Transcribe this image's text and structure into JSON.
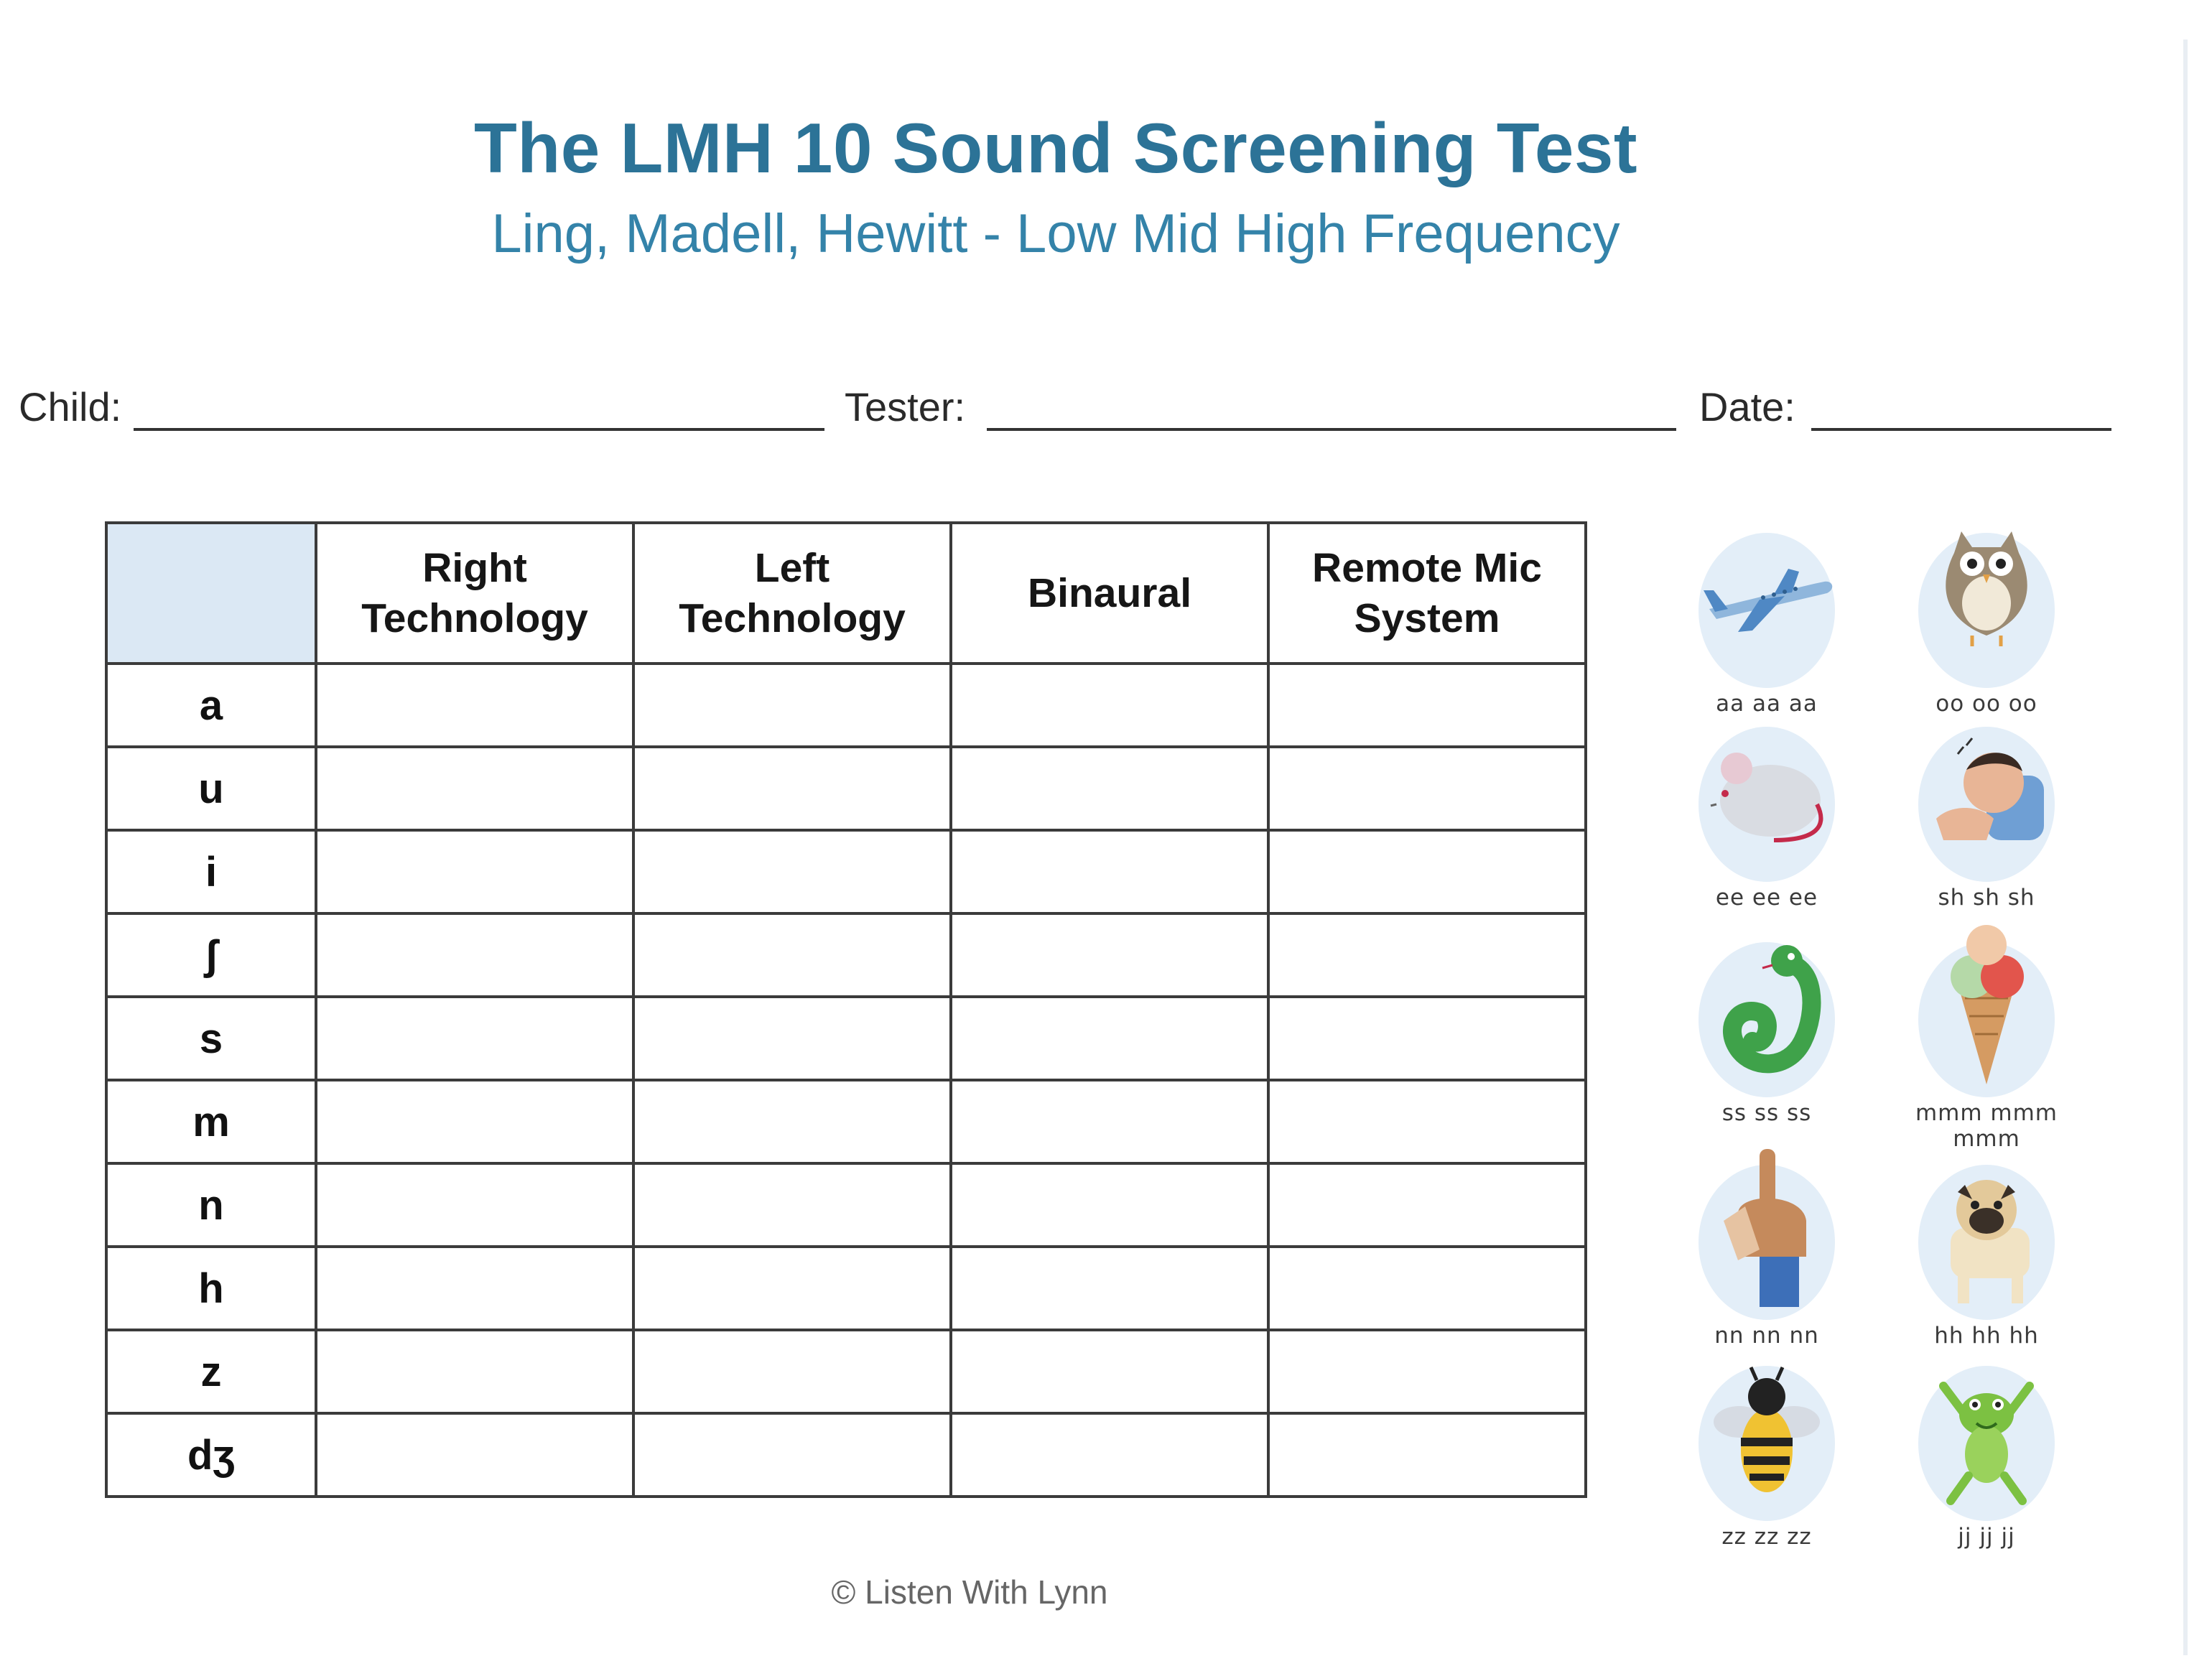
{
  "header": {
    "title": "The LMH 10 Sound Screening Test",
    "subtitle": "Ling, Madell, Hewitt - Low Mid High Frequency"
  },
  "fields": {
    "child_label": "Child:",
    "tester_label": "Tester:",
    "date_label": "Date:"
  },
  "table": {
    "columns": [
      {
        "line1": "Right",
        "line2": "Technology"
      },
      {
        "line1": "Left",
        "line2": "Technology"
      },
      {
        "line1": "Binaural",
        "line2": ""
      },
      {
        "line1": "Remote Mic",
        "line2": "System"
      }
    ],
    "rows": [
      "a",
      "u",
      "i",
      "ʃ",
      "s",
      "m",
      "n",
      "h",
      "z",
      "dʒ"
    ]
  },
  "pictures": [
    {
      "icon": "airplane-icon",
      "label": "aa aa aa"
    },
    {
      "icon": "owl-icon",
      "label": "oo oo oo"
    },
    {
      "icon": "mouse-icon",
      "label": "ee ee ee"
    },
    {
      "icon": "sleeping-baby-icon",
      "label": "sh sh sh"
    },
    {
      "icon": "snake-icon",
      "label": "ss ss ss"
    },
    {
      "icon": "ice-cream-icon",
      "label": "mmm mmm mmm"
    },
    {
      "icon": "hand-icon",
      "label": "nn nn nn"
    },
    {
      "icon": "dog-icon",
      "label": "hh hh hh"
    },
    {
      "icon": "bee-icon",
      "label": "zz zz zz"
    },
    {
      "icon": "frog-icon",
      "label": "jj jj jj"
    }
  ],
  "footer": {
    "copyright": "© Listen With Lynn"
  },
  "colors": {
    "title": "#2c7397",
    "subtitle": "#3483a9",
    "right_technology": "#b8243f",
    "left_technology": "#23507d",
    "header_blank_cell": "#dbe8f4",
    "picture_background": "#e3eef8"
  }
}
